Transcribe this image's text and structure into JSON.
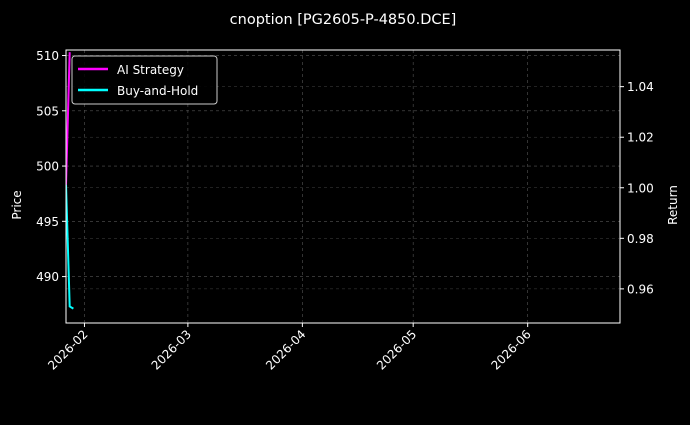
{
  "chart_data": {
    "type": "line",
    "title": "cnoption [PG2605-P-4850.DCE]",
    "xlabel": "",
    "ylabel": "Price",
    "ylabel_right": "Return",
    "xlim": [
      "2026-01-27",
      "2026-06-26"
    ],
    "ylim": [
      485.8,
      510.5
    ],
    "ylim_right": [
      0.9465,
      1.0545
    ],
    "x_ticks": [
      "2026-02",
      "2026-03",
      "2026-04",
      "2026-05",
      "2026-06"
    ],
    "y_ticks": [
      490,
      495,
      500,
      505,
      510
    ],
    "y_ticks_right": [
      "0.96",
      "0.98",
      "1.00",
      "1.02",
      "1.04"
    ],
    "grid": true,
    "legend_position": "top-left",
    "background": "#000000",
    "series": [
      {
        "name": "AI Strategy",
        "color": "#ff00ff",
        "x": [
          "2026-01-27",
          "2026-01-28"
        ],
        "values": [
          498.3,
          510.3
        ]
      },
      {
        "name": "Buy-and-Hold",
        "color": "#00ffff",
        "x": [
          "2026-01-27",
          "2026-01-28",
          "2026-01-29"
        ],
        "values": [
          498.3,
          487.3,
          487.1
        ]
      }
    ]
  }
}
